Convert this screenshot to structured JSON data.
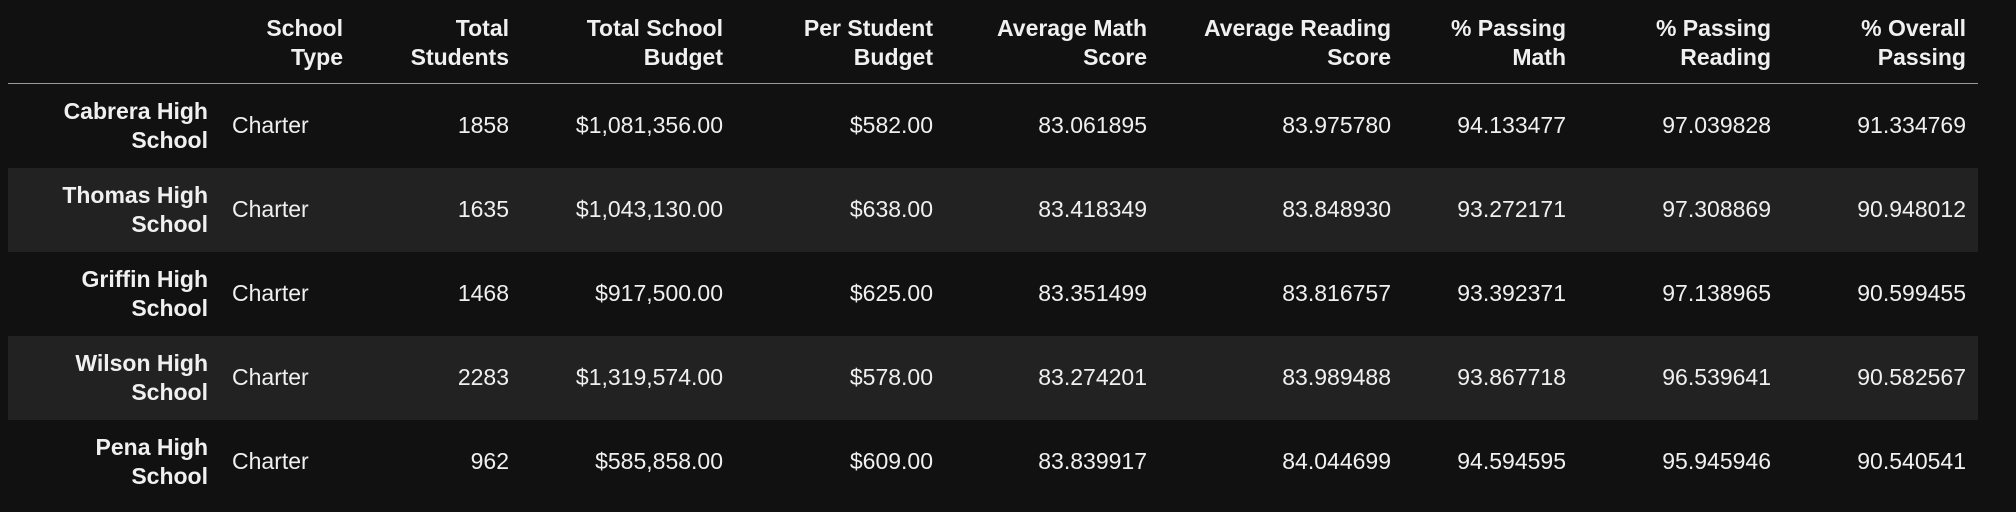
{
  "headers": [
    "",
    "School Type",
    "Total Students",
    "Total School Budget",
    "Per Student Budget",
    "Average Math Score",
    "Average Reading Score",
    "% Passing Math",
    "% Passing Reading",
    "% Overall Passing"
  ],
  "rows": [
    {
      "school": "Cabrera High School",
      "type": "Charter",
      "total_students": "1858",
      "total_budget": "$1,081,356.00",
      "per_student_budget": "$582.00",
      "avg_math": "83.061895",
      "avg_reading": "83.975780",
      "pct_math": "94.133477",
      "pct_reading": "97.039828",
      "pct_overall": "91.334769"
    },
    {
      "school": "Thomas High School",
      "type": "Charter",
      "total_students": "1635",
      "total_budget": "$1,043,130.00",
      "per_student_budget": "$638.00",
      "avg_math": "83.418349",
      "avg_reading": "83.848930",
      "pct_math": "93.272171",
      "pct_reading": "97.308869",
      "pct_overall": "90.948012"
    },
    {
      "school": "Griffin High School",
      "type": "Charter",
      "total_students": "1468",
      "total_budget": "$917,500.00",
      "per_student_budget": "$625.00",
      "avg_math": "83.351499",
      "avg_reading": "83.816757",
      "pct_math": "93.392371",
      "pct_reading": "97.138965",
      "pct_overall": "90.599455"
    },
    {
      "school": "Wilson High School",
      "type": "Charter",
      "total_students": "2283",
      "total_budget": "$1,319,574.00",
      "per_student_budget": "$578.00",
      "avg_math": "83.274201",
      "avg_reading": "83.989488",
      "pct_math": "93.867718",
      "pct_reading": "96.539641",
      "pct_overall": "90.582567"
    },
    {
      "school": "Pena High School",
      "type": "Charter",
      "total_students": "962",
      "total_budget": "$585,858.00",
      "per_student_budget": "$609.00",
      "avg_math": "83.839917",
      "avg_reading": "84.044699",
      "pct_math": "94.594595",
      "pct_reading": "95.945946",
      "pct_overall": "90.540541"
    }
  ],
  "colors": {
    "background": "#111111",
    "row_stripe": "#222222",
    "text": "#f0f0f0",
    "header_rule": "#9a9a9a"
  }
}
